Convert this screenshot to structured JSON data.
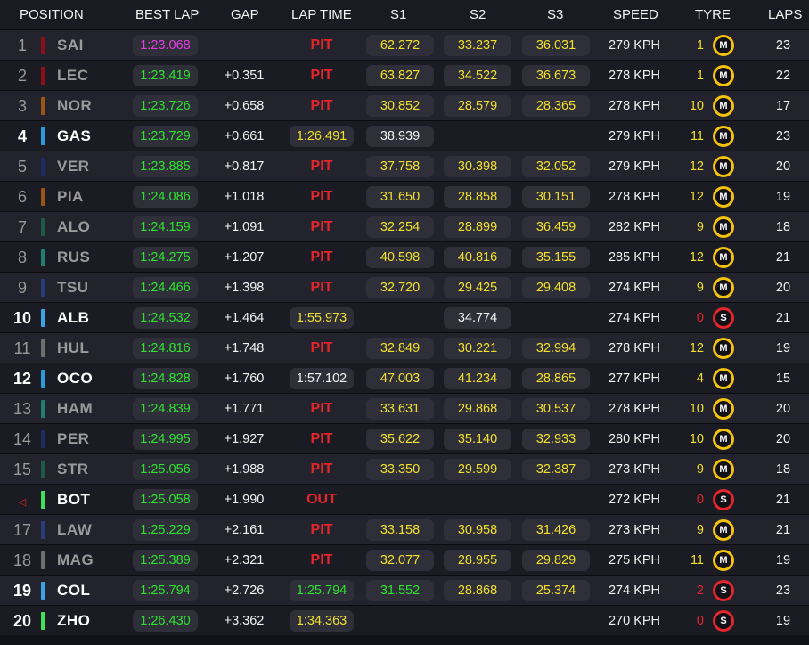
{
  "header": {
    "position": "POSITION",
    "best_lap": "BEST LAP",
    "gap": "GAP",
    "lap_time": "LAP TIME",
    "s1": "S1",
    "s2": "S2",
    "s3": "S3",
    "speed": "SPEED",
    "tyre": "TYRE",
    "laps": "LAPS"
  },
  "colors": {
    "purple": "#e23de2",
    "green": "#2fe22f",
    "yellow": "#f1e02b",
    "white": "#f2f2f2",
    "pit_red": "#e3262b",
    "medium_tyre": "#f4c20d",
    "soft_tyre": "#e3262b"
  },
  "rows": [
    {
      "pos": "1",
      "name": "SAI",
      "team_color": "#8b0f1b",
      "highlight": false,
      "best_lap": "1:23.068",
      "best_color": "purple",
      "gap": "",
      "lap_time": "PIT",
      "lap_time_type": "pit",
      "lap_time_color": "",
      "s1": "62.272",
      "s1_color": "yellow",
      "s2": "33.237",
      "s2_color": "yellow",
      "s3": "36.031",
      "s3_color": "yellow",
      "speed": "279 KPH",
      "tyre_age": "1",
      "tyre_age_color": "yellow",
      "tyre": "M",
      "laps": "23"
    },
    {
      "pos": "2",
      "name": "LEC",
      "team_color": "#8b0f1b",
      "highlight": false,
      "best_lap": "1:23.419",
      "best_color": "green",
      "gap": "+0.351",
      "lap_time": "PIT",
      "lap_time_type": "pit",
      "lap_time_color": "",
      "s1": "63.827",
      "s1_color": "yellow",
      "s2": "34.522",
      "s2_color": "yellow",
      "s3": "36.673",
      "s3_color": "yellow",
      "speed": "278 KPH",
      "tyre_age": "1",
      "tyre_age_color": "yellow",
      "tyre": "M",
      "laps": "22"
    },
    {
      "pos": "3",
      "name": "NOR",
      "team_color": "#9a5514",
      "highlight": false,
      "best_lap": "1:23.726",
      "best_color": "green",
      "gap": "+0.658",
      "lap_time": "PIT",
      "lap_time_type": "pit",
      "lap_time_color": "",
      "s1": "30.852",
      "s1_color": "yellow",
      "s2": "28.579",
      "s2_color": "yellow",
      "s3": "28.365",
      "s3_color": "yellow",
      "speed": "278 KPH",
      "tyre_age": "10",
      "tyre_age_color": "yellow",
      "tyre": "M",
      "laps": "17"
    },
    {
      "pos": "4",
      "name": "GAS",
      "team_color": "#2a9bd8",
      "highlight": true,
      "best_lap": "1:23.729",
      "best_color": "green",
      "gap": "+0.661",
      "lap_time": "1:26.491",
      "lap_time_type": "pill",
      "lap_time_color": "yellow",
      "s1": "38.939",
      "s1_color": "white",
      "s2": "",
      "s2_color": "white",
      "s3": "",
      "s3_color": "white",
      "speed": "279 KPH",
      "tyre_age": "11",
      "tyre_age_color": "yellow",
      "tyre": "M",
      "laps": "23"
    },
    {
      "pos": "5",
      "name": "VER",
      "team_color": "#1e2c63",
      "highlight": false,
      "best_lap": "1:23.885",
      "best_color": "green",
      "gap": "+0.817",
      "lap_time": "PIT",
      "lap_time_type": "pit",
      "lap_time_color": "",
      "s1": "37.758",
      "s1_color": "yellow",
      "s2": "30.398",
      "s2_color": "yellow",
      "s3": "32.052",
      "s3_color": "yellow",
      "speed": "279 KPH",
      "tyre_age": "12",
      "tyre_age_color": "yellow",
      "tyre": "M",
      "laps": "20"
    },
    {
      "pos": "6",
      "name": "PIA",
      "team_color": "#9a5514",
      "highlight": false,
      "best_lap": "1:24.086",
      "best_color": "green",
      "gap": "+1.018",
      "lap_time": "PIT",
      "lap_time_type": "pit",
      "lap_time_color": "",
      "s1": "31.650",
      "s1_color": "yellow",
      "s2": "28.858",
      "s2_color": "yellow",
      "s3": "30.151",
      "s3_color": "yellow",
      "speed": "278 KPH",
      "tyre_age": "12",
      "tyre_age_color": "yellow",
      "tyre": "M",
      "laps": "19"
    },
    {
      "pos": "7",
      "name": "ALO",
      "team_color": "#1c5a45",
      "highlight": false,
      "best_lap": "1:24.159",
      "best_color": "green",
      "gap": "+1.091",
      "lap_time": "PIT",
      "lap_time_type": "pit",
      "lap_time_color": "",
      "s1": "32.254",
      "s1_color": "yellow",
      "s2": "28.899",
      "s2_color": "yellow",
      "s3": "36.459",
      "s3_color": "yellow",
      "speed": "282 KPH",
      "tyre_age": "9",
      "tyre_age_color": "yellow",
      "tyre": "M",
      "laps": "18"
    },
    {
      "pos": "8",
      "name": "RUS",
      "team_color": "#1f7f70",
      "highlight": false,
      "best_lap": "1:24.275",
      "best_color": "green",
      "gap": "+1.207",
      "lap_time": "PIT",
      "lap_time_type": "pit",
      "lap_time_color": "",
      "s1": "40.598",
      "s1_color": "yellow",
      "s2": "40.816",
      "s2_color": "yellow",
      "s3": "35.155",
      "s3_color": "yellow",
      "speed": "285 KPH",
      "tyre_age": "12",
      "tyre_age_color": "yellow",
      "tyre": "M",
      "laps": "21"
    },
    {
      "pos": "9",
      "name": "TSU",
      "team_color": "#2a3d7a",
      "highlight": false,
      "best_lap": "1:24.466",
      "best_color": "green",
      "gap": "+1.398",
      "lap_time": "PIT",
      "lap_time_type": "pit",
      "lap_time_color": "",
      "s1": "32.720",
      "s1_color": "yellow",
      "s2": "29.425",
      "s2_color": "yellow",
      "s3": "29.408",
      "s3_color": "yellow",
      "speed": "274 KPH",
      "tyre_age": "9",
      "tyre_age_color": "yellow",
      "tyre": "M",
      "laps": "20"
    },
    {
      "pos": "10",
      "name": "ALB",
      "team_color": "#3aa3e8",
      "highlight": true,
      "best_lap": "1:24.532",
      "best_color": "green",
      "gap": "+1.464",
      "lap_time": "1:55.973",
      "lap_time_type": "pill",
      "lap_time_color": "yellow",
      "s1": "",
      "s1_color": "white",
      "s2": "34.774",
      "s2_color": "white",
      "s3": "",
      "s3_color": "white",
      "speed": "274 KPH",
      "tyre_age": "0",
      "tyre_age_color": "red",
      "tyre": "S",
      "laps": "21"
    },
    {
      "pos": "11",
      "name": "HUL",
      "team_color": "#6e6e6e",
      "highlight": false,
      "best_lap": "1:24.816",
      "best_color": "green",
      "gap": "+1.748",
      "lap_time": "PIT",
      "lap_time_type": "pit",
      "lap_time_color": "",
      "s1": "32.849",
      "s1_color": "yellow",
      "s2": "30.221",
      "s2_color": "yellow",
      "s3": "32.994",
      "s3_color": "yellow",
      "speed": "278 KPH",
      "tyre_age": "12",
      "tyre_age_color": "yellow",
      "tyre": "M",
      "laps": "19"
    },
    {
      "pos": "12",
      "name": "OCO",
      "team_color": "#2a9bd8",
      "highlight": true,
      "best_lap": "1:24.828",
      "best_color": "green",
      "gap": "+1.760",
      "lap_time": "1:57.102",
      "lap_time_type": "pill",
      "lap_time_color": "white",
      "s1": "47.003",
      "s1_color": "yellow",
      "s2": "41.234",
      "s2_color": "yellow",
      "s3": "28.865",
      "s3_color": "yellow",
      "speed": "277 KPH",
      "tyre_age": "4",
      "tyre_age_color": "yellow",
      "tyre": "M",
      "laps": "15"
    },
    {
      "pos": "13",
      "name": "HAM",
      "team_color": "#1f7f70",
      "highlight": false,
      "best_lap": "1:24.839",
      "best_color": "green",
      "gap": "+1.771",
      "lap_time": "PIT",
      "lap_time_type": "pit",
      "lap_time_color": "",
      "s1": "33.631",
      "s1_color": "yellow",
      "s2": "29.868",
      "s2_color": "yellow",
      "s3": "30.537",
      "s3_color": "yellow",
      "speed": "278 KPH",
      "tyre_age": "10",
      "tyre_age_color": "yellow",
      "tyre": "M",
      "laps": "20"
    },
    {
      "pos": "14",
      "name": "PER",
      "team_color": "#1e2c63",
      "highlight": false,
      "best_lap": "1:24.995",
      "best_color": "green",
      "gap": "+1.927",
      "lap_time": "PIT",
      "lap_time_type": "pit",
      "lap_time_color": "",
      "s1": "35.622",
      "s1_color": "yellow",
      "s2": "35.140",
      "s2_color": "yellow",
      "s3": "32.933",
      "s3_color": "yellow",
      "speed": "280 KPH",
      "tyre_age": "10",
      "tyre_age_color": "yellow",
      "tyre": "M",
      "laps": "20"
    },
    {
      "pos": "15",
      "name": "STR",
      "team_color": "#1c5a45",
      "highlight": false,
      "best_lap": "1:25.056",
      "best_color": "green",
      "gap": "+1.988",
      "lap_time": "PIT",
      "lap_time_type": "pit",
      "lap_time_color": "",
      "s1": "33.350",
      "s1_color": "yellow",
      "s2": "29.599",
      "s2_color": "yellow",
      "s3": "32.387",
      "s3_color": "yellow",
      "speed": "273 KPH",
      "tyre_age": "9",
      "tyre_age_color": "yellow",
      "tyre": "M",
      "laps": "18"
    },
    {
      "pos": "◁",
      "name": "BOT",
      "team_color": "#3fe05a",
      "highlight": true,
      "best_lap": "1:25.058",
      "best_color": "green",
      "gap": "+1.990",
      "lap_time": "OUT",
      "lap_time_type": "pit",
      "lap_time_color": "",
      "s1": "",
      "s1_color": "white",
      "s2": "",
      "s2_color": "white",
      "s3": "",
      "s3_color": "white",
      "speed": "272 KPH",
      "tyre_age": "0",
      "tyre_age_color": "red",
      "tyre": "S",
      "laps": "21"
    },
    {
      "pos": "17",
      "name": "LAW",
      "team_color": "#2a3d7a",
      "highlight": false,
      "best_lap": "1:25.229",
      "best_color": "green",
      "gap": "+2.161",
      "lap_time": "PIT",
      "lap_time_type": "pit",
      "lap_time_color": "",
      "s1": "33.158",
      "s1_color": "yellow",
      "s2": "30.958",
      "s2_color": "yellow",
      "s3": "31.426",
      "s3_color": "yellow",
      "speed": "273 KPH",
      "tyre_age": "9",
      "tyre_age_color": "yellow",
      "tyre": "M",
      "laps": "21"
    },
    {
      "pos": "18",
      "name": "MAG",
      "team_color": "#6e6e6e",
      "highlight": false,
      "best_lap": "1:25.389",
      "best_color": "green",
      "gap": "+2.321",
      "lap_time": "PIT",
      "lap_time_type": "pit",
      "lap_time_color": "",
      "s1": "32.077",
      "s1_color": "yellow",
      "s2": "28.955",
      "s2_color": "yellow",
      "s3": "29.829",
      "s3_color": "yellow",
      "speed": "275 KPH",
      "tyre_age": "11",
      "tyre_age_color": "yellow",
      "tyre": "M",
      "laps": "19"
    },
    {
      "pos": "19",
      "name": "COL",
      "team_color": "#3aa3e8",
      "highlight": true,
      "best_lap": "1:25.794",
      "best_color": "green",
      "gap": "+2.726",
      "lap_time": "1:25.794",
      "lap_time_type": "pill",
      "lap_time_color": "green",
      "s1": "31.552",
      "s1_color": "green",
      "s2": "28.868",
      "s2_color": "yellow",
      "s3": "25.374",
      "s3_color": "yellow",
      "speed": "274 KPH",
      "tyre_age": "2",
      "tyre_age_color": "red",
      "tyre": "S",
      "laps": "23"
    },
    {
      "pos": "20",
      "name": "ZHO",
      "team_color": "#3fe05a",
      "highlight": true,
      "best_lap": "1:26.430",
      "best_color": "green",
      "gap": "+3.362",
      "lap_time": "1:34.363",
      "lap_time_type": "pill",
      "lap_time_color": "yellow",
      "s1": "",
      "s1_color": "white",
      "s2": "",
      "s2_color": "white",
      "s3": "",
      "s3_color": "white",
      "speed": "270 KPH",
      "tyre_age": "0",
      "tyre_age_color": "red",
      "tyre": "S",
      "laps": "19"
    }
  ]
}
